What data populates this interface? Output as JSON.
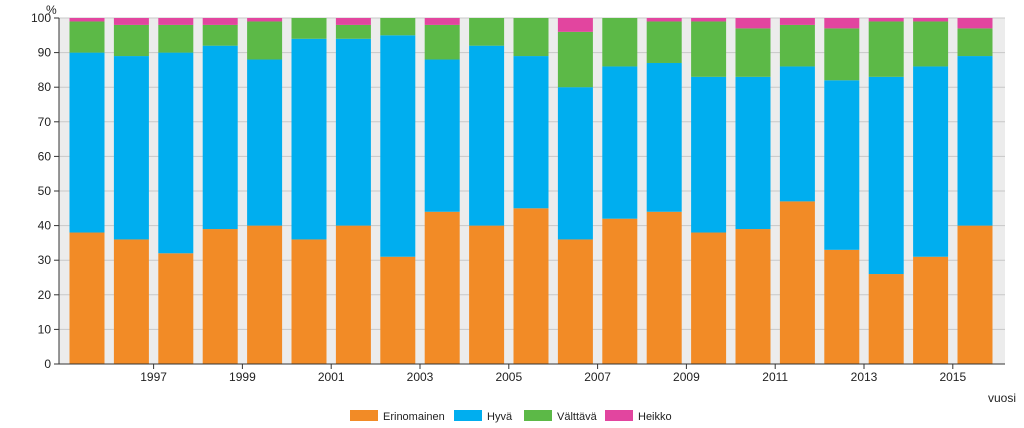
{
  "chart_data": {
    "type": "bar",
    "stacked": true,
    "ylabel": "%",
    "xlabel": "vuosi",
    "ylim": [
      0,
      100
    ],
    "yticks": [
      0,
      10,
      20,
      30,
      40,
      50,
      60,
      70,
      80,
      90,
      100
    ],
    "grid": true,
    "legend_position": "bottom",
    "categories": [
      "1996",
      "1997",
      "1998",
      "1999",
      "2000",
      "2001",
      "2002",
      "2003",
      "2004",
      "2005",
      "2006",
      "2007",
      "2008",
      "2009",
      "2010",
      "2011",
      "2012",
      "2013",
      "2014",
      "2015",
      "2016"
    ],
    "xtick_labels": [
      "",
      "1997",
      "",
      "1999",
      "",
      "2001",
      "",
      "2003",
      "",
      "2005",
      "",
      "2007",
      "",
      "2009",
      "",
      "2011",
      "",
      "2013",
      "",
      "2015",
      ""
    ],
    "series": [
      {
        "name": "Erinomainen",
        "color": "#f28b26",
        "values": [
          38,
          36,
          32,
          39,
          40,
          36,
          40,
          31,
          44,
          40,
          45,
          36,
          42,
          44,
          38,
          39,
          47,
          33,
          26,
          31,
          40
        ]
      },
      {
        "name": "Hyvä",
        "color": "#00aeef",
        "values": [
          52,
          53,
          58,
          53,
          48,
          58,
          54,
          64,
          44,
          52,
          44,
          44,
          44,
          43,
          45,
          44,
          39,
          49,
          57,
          55,
          49
        ]
      },
      {
        "name": "Välttävä",
        "color": "#5cb947",
        "values": [
          9,
          9,
          8,
          6,
          11,
          6,
          4,
          5,
          10,
          8,
          11,
          16,
          14,
          12,
          16,
          14,
          12,
          15,
          16,
          13,
          8
        ]
      },
      {
        "name": "Heikko",
        "color": "#e2459f",
        "values": [
          1,
          2,
          2,
          2,
          1,
          0,
          2,
          0,
          2,
          0,
          0,
          4,
          0,
          1,
          1,
          3,
          2,
          3,
          1,
          1,
          3
        ]
      }
    ],
    "colors": {
      "plot_background": "#ececec",
      "gridline": "#c8c8c8",
      "axis": "#333333"
    }
  }
}
